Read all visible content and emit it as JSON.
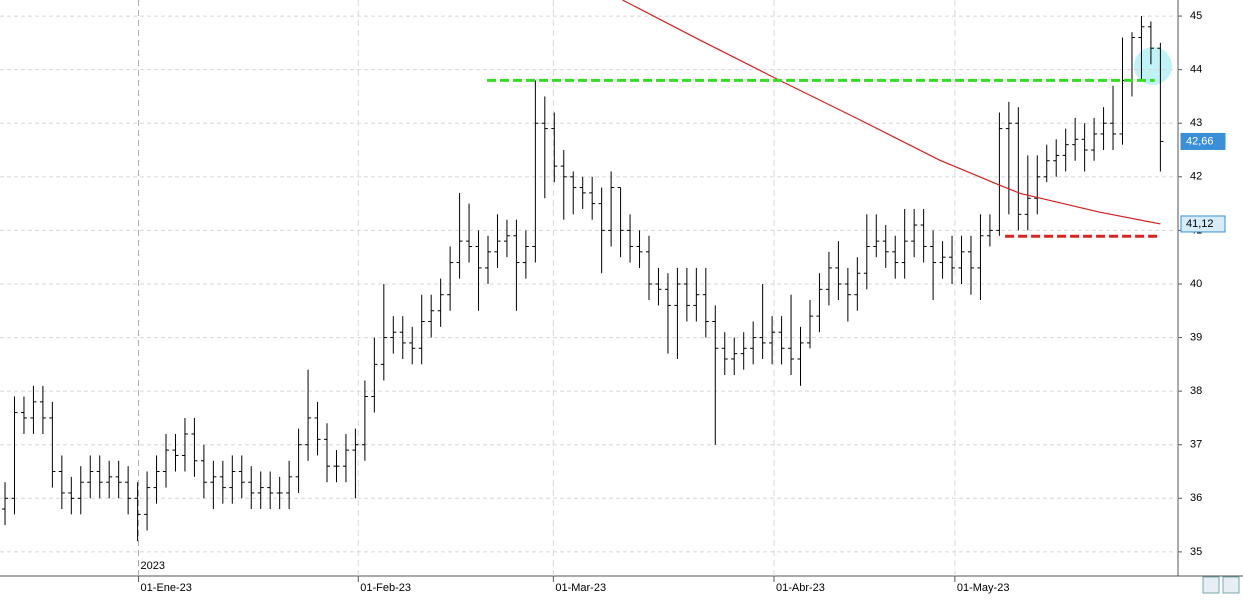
{
  "chart_data": {
    "type": "ohlc",
    "x": [
      0,
      1,
      2,
      3,
      4,
      5,
      6,
      7,
      8,
      9,
      10,
      11,
      12,
      13,
      14,
      15,
      16,
      17,
      18,
      19,
      20,
      21,
      22,
      23,
      24,
      25,
      26,
      27,
      28,
      29,
      30,
      31,
      32,
      33,
      34,
      35,
      36,
      37,
      38,
      39,
      40,
      41,
      42,
      43,
      44,
      45,
      46,
      47,
      48,
      49,
      50,
      51,
      52,
      53,
      54,
      55,
      56,
      57,
      58,
      59,
      60,
      61,
      62,
      63,
      64,
      65,
      66,
      67,
      68,
      69,
      70,
      71,
      72,
      73,
      74,
      75,
      76,
      77,
      78,
      79,
      80,
      81,
      82,
      83,
      84,
      85,
      86,
      87,
      88,
      89,
      90,
      91,
      92,
      93,
      94,
      95,
      96,
      97,
      98,
      99,
      100,
      101,
      102,
      103,
      104,
      105,
      106,
      107,
      108,
      109,
      110,
      111,
      112,
      113,
      114,
      115,
      116,
      117,
      118,
      119,
      120,
      121,
      122
    ],
    "open": [
      35.8,
      36.0,
      37.6,
      37.5,
      37.8,
      37.5,
      36.5,
      36.1,
      36.0,
      36.3,
      36.5,
      36.3,
      36.4,
      36.3,
      36.0,
      35.7,
      36.2,
      36.5,
      36.9,
      36.8,
      37.2,
      36.7,
      36.3,
      36.4,
      36.2,
      36.5,
      36.3,
      36.1,
      36.2,
      36.1,
      36.1,
      36.4,
      37.0,
      37.5,
      37.1,
      36.6,
      36.6,
      36.9,
      37.0,
      37.9,
      38.5,
      39.0,
      39.1,
      38.9,
      38.8,
      39.3,
      39.5,
      39.8,
      40.4,
      40.8,
      40.7,
      40.3,
      40.6,
      40.8,
      40.9,
      40.4,
      40.7,
      43.0,
      42.9,
      42.2,
      42.0,
      41.8,
      41.7,
      41.5,
      41.0,
      41.8,
      41.0,
      40.7,
      40.6,
      40.0,
      39.9,
      39.6,
      40.0,
      39.6,
      39.8,
      39.3,
      38.8,
      38.6,
      38.7,
      38.8,
      39.0,
      38.9,
      39.1,
      38.8,
      38.6,
      38.9,
      39.4,
      39.9,
      40.3,
      40.0,
      39.8,
      40.2,
      40.7,
      40.8,
      40.6,
      40.4,
      40.8,
      41.1,
      40.7,
      40.4,
      40.5,
      40.3,
      40.6,
      40.3,
      40.9,
      41.0,
      42.9,
      43.0,
      41.3,
      41.6,
      42.0,
      42.3,
      42.4,
      42.6,
      42.7,
      42.5,
      42.8,
      43.0,
      42.8,
      43.8,
      44.6,
      44.8,
      44.4
    ],
    "high": [
      36.3,
      37.9,
      37.9,
      38.1,
      38.1,
      37.8,
      36.8,
      36.4,
      36.6,
      36.8,
      36.8,
      36.7,
      36.7,
      36.6,
      36.3,
      36.5,
      36.8,
      37.2,
      37.2,
      37.5,
      37.5,
      37.0,
      36.7,
      36.7,
      36.8,
      36.8,
      36.6,
      36.5,
      36.5,
      36.4,
      36.7,
      37.3,
      38.4,
      37.8,
      37.4,
      36.9,
      37.2,
      37.3,
      38.2,
      39.0,
      40.0,
      39.4,
      39.4,
      39.2,
      39.8,
      39.8,
      40.1,
      40.7,
      41.7,
      41.5,
      41.0,
      40.9,
      41.3,
      41.2,
      41.2,
      41.0,
      43.8,
      43.5,
      43.2,
      42.5,
      42.1,
      42.0,
      42.0,
      41.8,
      42.1,
      41.8,
      41.3,
      41.0,
      40.9,
      40.3,
      40.2,
      40.3,
      40.3,
      40.3,
      40.3,
      39.6,
      39.1,
      39.0,
      39.1,
      39.3,
      40.0,
      39.4,
      39.4,
      39.8,
      39.2,
      39.7,
      40.2,
      40.6,
      40.8,
      40.3,
      40.5,
      41.3,
      41.3,
      41.1,
      40.9,
      41.4,
      41.4,
      41.4,
      41.0,
      40.8,
      40.9,
      40.9,
      40.9,
      41.3,
      41.3,
      43.2,
      43.4,
      43.3,
      42.4,
      42.4,
      42.6,
      42.7,
      42.9,
      43.1,
      43.0,
      43.1,
      43.3,
      43.7,
      44.6,
      44.7,
      45.0,
      44.9,
      44.5
    ],
    "low": [
      35.5,
      35.7,
      37.2,
      37.2,
      37.2,
      36.2,
      35.8,
      35.7,
      35.7,
      36.0,
      36.0,
      36.0,
      36.0,
      35.7,
      35.2,
      35.4,
      35.9,
      36.2,
      36.5,
      36.5,
      36.4,
      36.0,
      35.8,
      35.9,
      35.9,
      36.0,
      35.8,
      35.8,
      35.8,
      35.8,
      35.8,
      36.1,
      36.7,
      36.8,
      36.3,
      36.3,
      36.3,
      36.0,
      36.7,
      37.6,
      38.2,
      38.7,
      38.6,
      38.5,
      38.5,
      39.0,
      39.2,
      39.5,
      40.1,
      40.4,
      39.5,
      40.0,
      40.3,
      40.5,
      39.5,
      40.1,
      40.4,
      41.6,
      41.9,
      41.2,
      41.3,
      41.4,
      41.2,
      40.2,
      40.7,
      40.5,
      40.4,
      40.3,
      39.7,
      39.6,
      38.7,
      38.6,
      39.3,
      39.3,
      39.0,
      37.0,
      38.3,
      38.3,
      38.4,
      38.5,
      38.6,
      38.5,
      38.5,
      38.3,
      38.1,
      38.8,
      39.1,
      39.6,
      39.7,
      39.3,
      39.5,
      39.9,
      40.5,
      40.3,
      40.1,
      40.1,
      40.5,
      40.4,
      39.7,
      40.1,
      40.0,
      40.0,
      39.8,
      39.7,
      40.7,
      40.9,
      41.3,
      41.0,
      41.0,
      41.3,
      41.9,
      42.0,
      42.1,
      42.3,
      42.1,
      42.3,
      42.5,
      42.5,
      42.6,
      43.5,
      43.8,
      44.1,
      42.1
    ],
    "close": [
      36.0,
      37.6,
      37.5,
      37.8,
      37.5,
      36.5,
      36.1,
      36.0,
      36.3,
      36.5,
      36.3,
      36.4,
      36.3,
      36.0,
      35.7,
      36.2,
      36.5,
      36.9,
      36.8,
      37.2,
      36.7,
      36.3,
      36.4,
      36.2,
      36.5,
      36.3,
      36.1,
      36.2,
      36.1,
      36.1,
      36.4,
      37.0,
      37.5,
      37.1,
      36.6,
      36.6,
      36.9,
      37.0,
      37.9,
      38.5,
      39.0,
      39.1,
      38.9,
      38.8,
      39.3,
      39.5,
      39.8,
      40.4,
      40.8,
      40.7,
      40.3,
      40.6,
      40.8,
      40.9,
      40.4,
      40.7,
      43.0,
      42.9,
      42.2,
      42.0,
      41.8,
      41.7,
      41.5,
      41.0,
      41.8,
      41.0,
      40.7,
      40.6,
      40.0,
      39.9,
      39.6,
      40.0,
      39.6,
      39.8,
      39.3,
      38.8,
      38.6,
      38.7,
      38.8,
      39.0,
      38.9,
      39.1,
      38.8,
      38.6,
      38.9,
      39.4,
      39.9,
      40.3,
      40.0,
      39.8,
      40.2,
      40.7,
      40.8,
      40.6,
      40.4,
      40.8,
      41.1,
      40.7,
      40.4,
      40.5,
      40.3,
      40.6,
      40.3,
      40.9,
      41.0,
      42.9,
      43.0,
      41.3,
      41.6,
      42.0,
      42.3,
      42.4,
      42.6,
      42.7,
      42.5,
      42.8,
      43.0,
      42.8,
      43.8,
      44.6,
      44.8,
      44.4,
      42.66
    ],
    "color": "#000000",
    "moving_average": {
      "color": "#d42020",
      "x": [
        65.2,
        73.4,
        81.8,
        90.3,
        98.7,
        105.1,
        107.2,
        115.6,
        122
      ],
      "values": [
        45.3,
        44.55,
        43.8,
        43.06,
        42.31,
        41.84,
        41.69,
        41.34,
        41.12
      ]
    },
    "levels": [
      {
        "color": "#33dd22",
        "value": 43.8,
        "x": [
          50.9,
          121.4
        ]
      },
      {
        "color": "#dd2222",
        "value": 40.89,
        "x": [
          105.6,
          122
        ]
      }
    ],
    "last_labels": [
      {
        "value": 42.66,
        "label": "42,66"
      },
      {
        "value": 41.12,
        "label": "41,12"
      }
    ],
    "year_label": "2023",
    "xlim": [
      -0.53,
      123.86
    ],
    "ylim": [
      34.55,
      45.3
    ],
    "xticks": [
      {
        "value": 14.1,
        "label": "01-Ene-23"
      },
      {
        "value": 37.3,
        "label": "01-Feb-23"
      },
      {
        "value": 57.9,
        "label": "01-Mar-23"
      },
      {
        "value": 81.2,
        "label": "01-Abr-23"
      },
      {
        "value": 100.3,
        "label": "01-May-23"
      }
    ],
    "yticks": [
      35,
      36,
      37,
      38,
      39,
      40,
      41,
      42,
      43,
      44,
      45
    ],
    "grid": true
  }
}
